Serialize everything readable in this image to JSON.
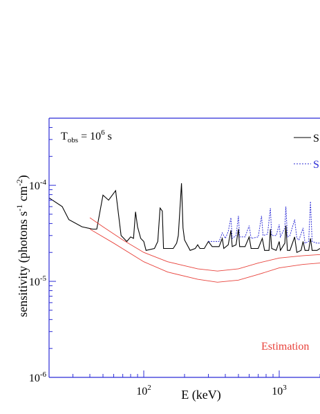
{
  "chart_data": {
    "type": "line",
    "title": "",
    "xlabel": "E (keV)",
    "ylabel": "sensitivity (photons s",
    "xscale": "log",
    "yscale": "log",
    "xlim": [
      20,
      2000
    ],
    "ylim": [
      1e-06,
      0.0005
    ],
    "x_ticks": [
      {
        "value": 100,
        "base": "10",
        "exp": "2"
      },
      {
        "value": 1000,
        "base": "10",
        "exp": "3"
      }
    ],
    "y_ticks": [
      {
        "value": 1e-06,
        "base": "10",
        "exp": "-6"
      },
      {
        "value": 1e-05,
        "base": "10",
        "exp": "-5"
      },
      {
        "value": 0.0001,
        "base": "10",
        "exp": "-4"
      }
    ],
    "annotation_obs": {
      "t": "T",
      "sub": "obs",
      "eq": " = 10",
      "exp": "6",
      "unit": " s"
    },
    "ylabel_parts": {
      "a": "sensitivity (photons s",
      "e1": "-1",
      "b": " cm",
      "e2": "-2",
      "c": ")"
    },
    "legend": [
      {
        "name": "S",
        "color": "#000000",
        "style": "solid"
      },
      {
        "name": "S",
        "color": "#2b2bd6",
        "style": "dotted"
      }
    ],
    "estimation_label": "Estimation",
    "series": [
      {
        "color": "#000000",
        "style": "solid",
        "points": [
          [
            20,
            7.4e-05
          ],
          [
            25,
            6e-05
          ],
          [
            28,
            4.4e-05
          ],
          [
            35,
            3.7e-05
          ],
          [
            42,
            3.5e-05
          ],
          [
            45,
            3.5e-05
          ],
          [
            50,
            7.9e-05
          ],
          [
            55,
            7e-05
          ],
          [
            62,
            8.8e-05
          ],
          [
            68,
            3e-05
          ],
          [
            75,
            2.6e-05
          ],
          [
            80,
            2.9e-05
          ],
          [
            84,
            2.8e-05
          ],
          [
            87,
            5.3e-05
          ],
          [
            90,
            3.7e-05
          ],
          [
            95,
            2.8e-05
          ],
          [
            100,
            2.6e-05
          ],
          [
            104,
            2.1e-05
          ],
          [
            120,
            2.2e-05
          ],
          [
            127,
            2.6e-05
          ],
          [
            132,
            5.8e-05
          ],
          [
            137,
            5.4e-05
          ],
          [
            140,
            2.2e-05
          ],
          [
            165,
            2.2e-05
          ],
          [
            175,
            2.5e-05
          ],
          [
            180,
            3e-05
          ],
          [
            190,
            0.000105
          ],
          [
            195,
            3.6e-05
          ],
          [
            200,
            2.7e-05
          ],
          [
            220,
            2.1e-05
          ],
          [
            240,
            2.2e-05
          ],
          [
            250,
            2.4e-05
          ],
          [
            260,
            2.2e-05
          ],
          [
            280,
            2.2e-05
          ],
          [
            300,
            2.6e-05
          ],
          [
            320,
            2.3e-05
          ],
          [
            360,
            2.3e-05
          ],
          [
            380,
            2.8e-05
          ],
          [
            390,
            2.2e-05
          ],
          [
            420,
            2.4e-05
          ],
          [
            440,
            3.4e-05
          ],
          [
            450,
            2.3e-05
          ],
          [
            480,
            2.4e-05
          ],
          [
            500,
            3.5e-05
          ],
          [
            510,
            2.3e-05
          ],
          [
            560,
            2.3e-05
          ],
          [
            600,
            2.9e-05
          ],
          [
            620,
            2.2e-05
          ],
          [
            700,
            2.2e-05
          ],
          [
            750,
            2.8e-05
          ],
          [
            780,
            2.1e-05
          ],
          [
            840,
            2.1e-05
          ],
          [
            860,
            3.5e-05
          ],
          [
            880,
            2.2e-05
          ],
          [
            950,
            2.1e-05
          ],
          [
            1000,
            2.6e-05
          ],
          [
            1020,
            2.1e-05
          ],
          [
            1100,
            2.5e-05
          ],
          [
            1120,
            3.8e-05
          ],
          [
            1150,
            2.1e-05
          ],
          [
            1200,
            2.1e-05
          ],
          [
            1300,
            2.9e-05
          ],
          [
            1350,
            2e-05
          ],
          [
            1450,
            2.1e-05
          ],
          [
            1500,
            2.6e-05
          ],
          [
            1550,
            2.1e-05
          ],
          [
            1650,
            2.1e-05
          ],
          [
            1700,
            2.8e-05
          ],
          [
            1750,
            2.1e-05
          ],
          [
            1900,
            2.1e-05
          ],
          [
            2000,
            2.2e-05
          ]
        ]
      },
      {
        "color": "#2b2bd6",
        "style": "dotted",
        "points": [
          [
            300,
            2.6e-05
          ],
          [
            320,
            2.6e-05
          ],
          [
            360,
            2.6e-05
          ],
          [
            380,
            3.2e-05
          ],
          [
            400,
            2.8e-05
          ],
          [
            420,
            3.3e-05
          ],
          [
            440,
            4.6e-05
          ],
          [
            450,
            2.8e-05
          ],
          [
            480,
            3e-05
          ],
          [
            500,
            4.8e-05
          ],
          [
            510,
            2.9e-05
          ],
          [
            560,
            2.9e-05
          ],
          [
            600,
            3.8e-05
          ],
          [
            620,
            2.8e-05
          ],
          [
            700,
            2.9e-05
          ],
          [
            740,
            4.8e-05
          ],
          [
            760,
            3e-05
          ],
          [
            820,
            3.1e-05
          ],
          [
            860,
            5.8e-05
          ],
          [
            880,
            3e-05
          ],
          [
            950,
            3e-05
          ],
          [
            1000,
            3.9e-05
          ],
          [
            1020,
            2.9e-05
          ],
          [
            1100,
            3.6e-05
          ],
          [
            1120,
            6e-05
          ],
          [
            1150,
            2.9e-05
          ],
          [
            1200,
            3e-05
          ],
          [
            1300,
            4.4e-05
          ],
          [
            1350,
            2.8e-05
          ],
          [
            1400,
            2.7e-05
          ],
          [
            1500,
            3.6e-05
          ],
          [
            1550,
            2.5e-05
          ],
          [
            1650,
            2.6e-05
          ],
          [
            1700,
            6.8e-05
          ],
          [
            1750,
            2.6e-05
          ],
          [
            1900,
            2.5e-05
          ],
          [
            2000,
            2.5e-05
          ]
        ]
      },
      {
        "color": "#e8413a",
        "style": "solid",
        "points": [
          [
            40,
            4.6e-05
          ],
          [
            50,
            3.7e-05
          ],
          [
            70,
            2.7e-05
          ],
          [
            100,
            2e-05
          ],
          [
            150,
            1.6e-05
          ],
          [
            250,
            1.35e-05
          ],
          [
            350,
            1.28e-05
          ],
          [
            500,
            1.35e-05
          ],
          [
            700,
            1.55e-05
          ],
          [
            1000,
            1.75e-05
          ],
          [
            1500,
            1.85e-05
          ],
          [
            2000,
            1.9e-05
          ]
        ]
      },
      {
        "color": "#e8413a",
        "style": "solid",
        "points": [
          [
            40,
            3.5e-05
          ],
          [
            60,
            2.5e-05
          ],
          [
            100,
            1.6e-05
          ],
          [
            150,
            1.25e-05
          ],
          [
            250,
            1.05e-05
          ],
          [
            350,
            9.8e-06
          ],
          [
            500,
            1.03e-05
          ],
          [
            700,
            1.18e-05
          ],
          [
            1000,
            1.38e-05
          ],
          [
            1500,
            1.5e-05
          ],
          [
            2000,
            1.55e-05
          ]
        ]
      }
    ]
  }
}
